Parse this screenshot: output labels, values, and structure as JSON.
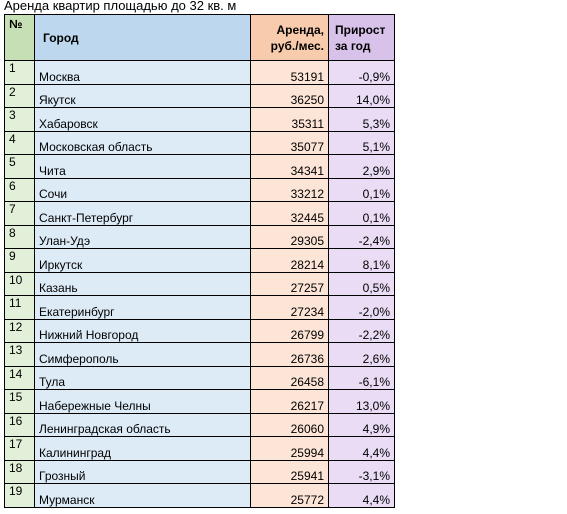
{
  "title": "Аренда квартир площадью до 32 кв. м",
  "colors": {
    "num_header": "#c6dfb4",
    "num_cell": "#e2efd9",
    "city_header": "#bdd7ee",
    "city_cell": "#ddebf7",
    "rent_header": "#f8cbad",
    "rent_cell": "#fce4d6",
    "growth_header": "#d9c2ea",
    "growth_cell": "#e9dcf4"
  },
  "table": {
    "headers": {
      "num": "№",
      "city": "Город",
      "rent_line1": "Аренда,",
      "rent_line2": "руб./мес.",
      "growth_line1": "Прирост",
      "growth_line2": "за год"
    },
    "rows": [
      {
        "num": "1",
        "city": "Москва",
        "rent": "53191",
        "growth": "-0,9%"
      },
      {
        "num": "2",
        "city": "Якутск",
        "rent": "36250",
        "growth": "14,0%"
      },
      {
        "num": "3",
        "city": "Хабаровск",
        "rent": "35311",
        "growth": "5,3%"
      },
      {
        "num": "4",
        "city": "Московская область",
        "rent": "35077",
        "growth": "5,1%"
      },
      {
        "num": "5",
        "city": "Чита",
        "rent": "34341",
        "growth": "2,9%"
      },
      {
        "num": "6",
        "city": "Сочи",
        "rent": "33212",
        "growth": "0,1%"
      },
      {
        "num": "7",
        "city": "Санкт-Петербург",
        "rent": "32445",
        "growth": "0,1%"
      },
      {
        "num": "8",
        "city": "Улан-Удэ",
        "rent": "29305",
        "growth": "-2,4%"
      },
      {
        "num": "9",
        "city": "Иркутск",
        "rent": "28214",
        "growth": "8,1%"
      },
      {
        "num": "10",
        "city": "Казань",
        "rent": "27257",
        "growth": "0,5%"
      },
      {
        "num": "11",
        "city": "Екатеринбург",
        "rent": "27234",
        "growth": "-2,0%"
      },
      {
        "num": "12",
        "city": "Нижний Новгород",
        "rent": "26799",
        "growth": "-2,2%"
      },
      {
        "num": "13",
        "city": "Симферополь",
        "rent": "26736",
        "growth": "2,6%"
      },
      {
        "num": "14",
        "city": "Тула",
        "rent": "26458",
        "growth": "-6,1%"
      },
      {
        "num": "15",
        "city": "Набережные Челны",
        "rent": "26217",
        "growth": "13,0%"
      },
      {
        "num": "16",
        "city": "Ленинградская область",
        "rent": "26060",
        "growth": "4,9%"
      },
      {
        "num": "17",
        "city": "Калининград",
        "rent": "25994",
        "growth": "4,4%"
      },
      {
        "num": "18",
        "city": "Грозный",
        "rent": "25941",
        "growth": "-3,1%"
      },
      {
        "num": "19",
        "city": "Мурманск",
        "rent": "25772",
        "growth": "4,4%"
      }
    ]
  }
}
